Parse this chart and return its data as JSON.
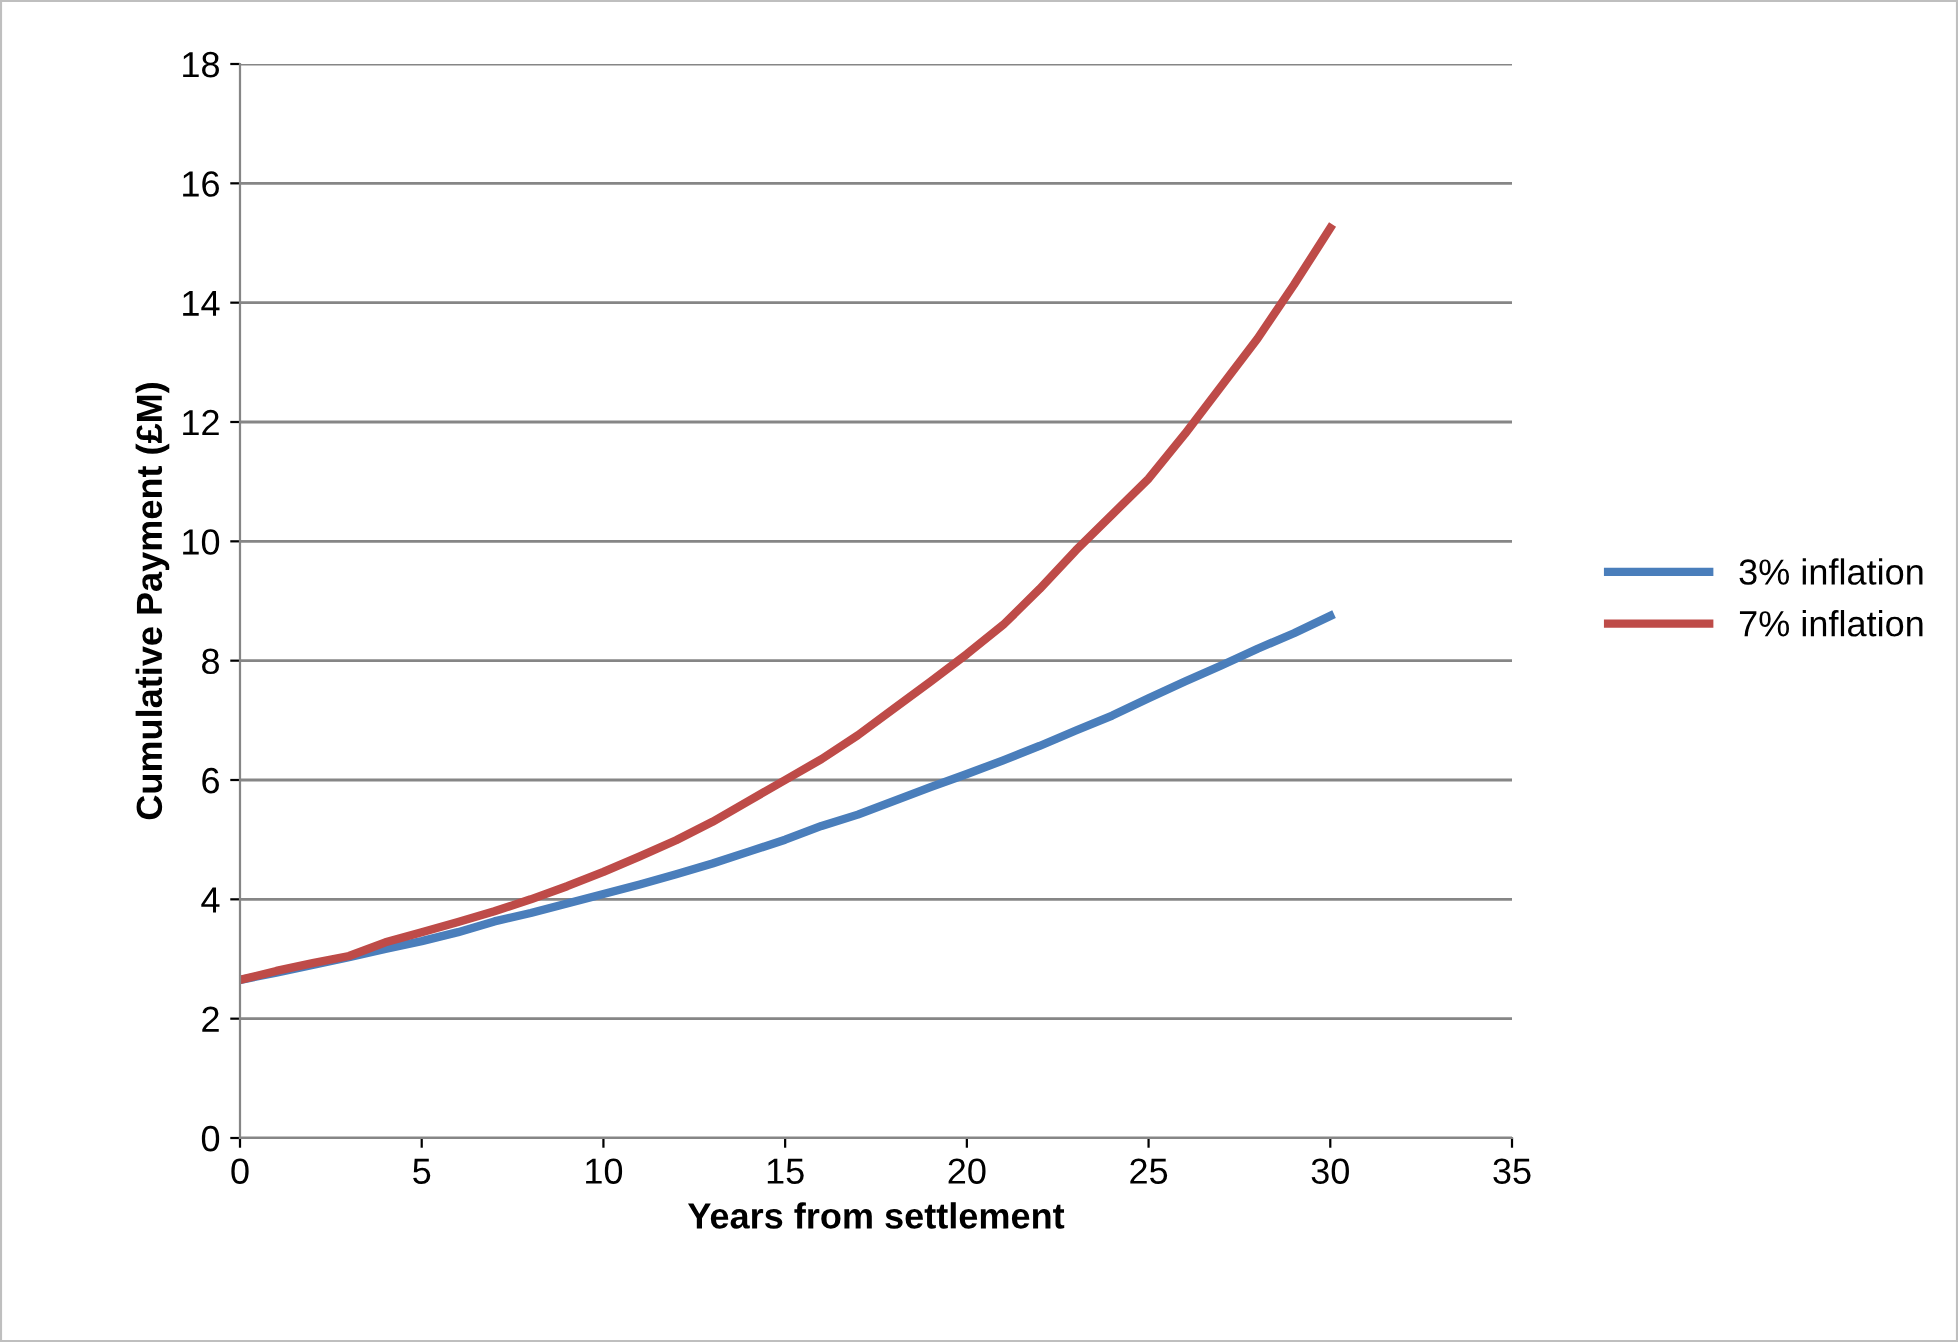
{
  "chart_data": {
    "type": "line",
    "xlabel": "Years from settlement",
    "ylabel": "Cumulative Payment (£M)",
    "x": [
      0,
      1,
      2,
      3,
      4,
      5,
      6,
      7,
      8,
      9,
      10,
      11,
      12,
      13,
      14,
      15,
      16,
      17,
      18,
      19,
      20,
      21,
      22,
      23,
      24,
      25,
      26,
      27,
      28,
      29,
      30
    ],
    "series": [
      {
        "name": "3% inflation",
        "color": "#4a7ebb",
        "values": [
          2.65,
          2.77,
          2.9,
          3.03,
          3.17,
          3.3,
          3.45,
          3.63,
          3.77,
          3.93,
          4.09,
          4.25,
          4.42,
          4.6,
          4.8,
          5.0,
          5.23,
          5.42,
          5.65,
          5.88,
          6.1,
          6.33,
          6.57,
          6.83,
          7.08,
          7.37,
          7.65,
          7.92,
          8.2,
          8.46,
          8.75
        ]
      },
      {
        "name": "7% inflation",
        "color": "#be4b48",
        "values": [
          2.65,
          2.8,
          2.93,
          3.05,
          3.28,
          3.45,
          3.62,
          3.8,
          4.0,
          4.22,
          4.46,
          4.72,
          4.99,
          5.3,
          5.65,
          6.0,
          6.35,
          6.75,
          7.2,
          7.65,
          8.11,
          8.6,
          9.2,
          9.85,
          10.45,
          11.05,
          11.8,
          12.6,
          13.4,
          14.3,
          15.25
        ]
      }
    ],
    "xlim": [
      0,
      35
    ],
    "xticks": [
      0,
      5,
      10,
      15,
      20,
      25,
      30,
      35
    ],
    "ylim": [
      0,
      18
    ],
    "yticks": [
      0,
      2,
      4,
      6,
      8,
      10,
      12,
      14,
      16,
      18
    ],
    "grid": "y",
    "legend": "right",
    "marker": "none",
    "line_style": "solid"
  }
}
